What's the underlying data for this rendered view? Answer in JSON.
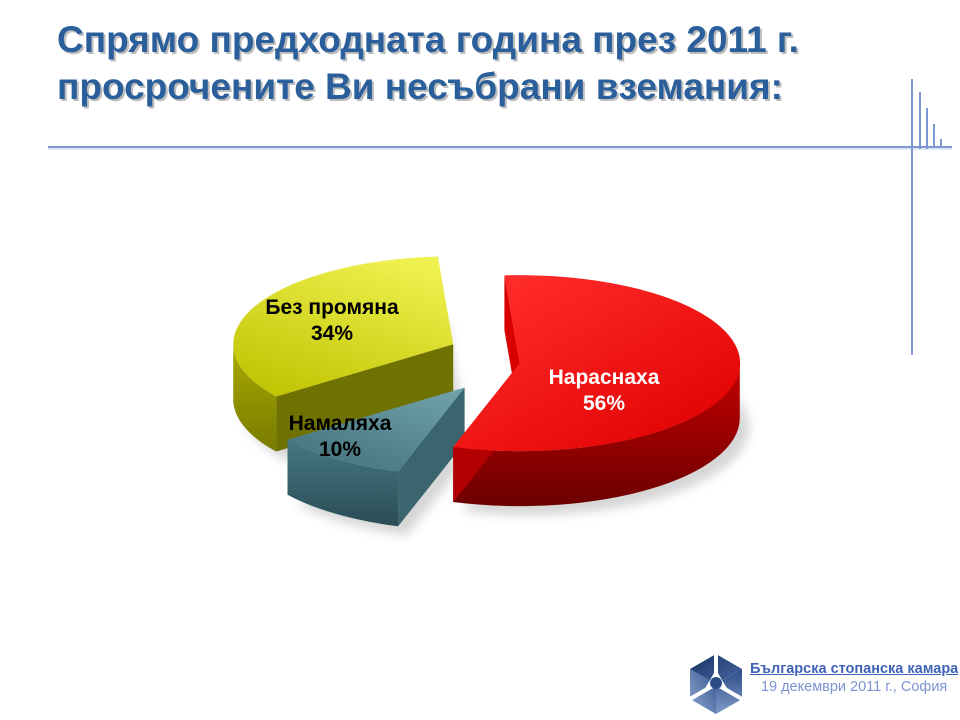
{
  "slide": {
    "title_line1": "Спрямо предходната година през 2011 г.",
    "title_line2": "просрочените Ви несъбрани вземания:",
    "footer": {
      "org_name": "Българска стопанска камара",
      "date_location": "19 декември 2011 г., София"
    }
  },
  "chart_data": {
    "type": "pie",
    "style": "3d-exploded",
    "title": "Спрямо предходната година през 2011 г. просрочените Ви несъбрани вземания:",
    "unit": "%",
    "direction": "clockwise",
    "start_angle_deg": -4,
    "legend": "none",
    "slices": [
      {
        "label": "Нараснаха",
        "value": 56,
        "pct_text": "56%",
        "color": "#ee0404",
        "label_color": "#ffffff",
        "top_light": "#ff2a2a",
        "top_dark": "#e00000",
        "side_light": "#c40000",
        "side_dark": "#6d0000",
        "wall_start": "#d90000",
        "wall_end": "#b30000"
      },
      {
        "label": "Намаляха",
        "value": 10,
        "pct_text": "10%",
        "color": "#4f828c",
        "label_color": "#000000",
        "top_light": "#6fa0a8",
        "top_dark": "#42707b",
        "side_light": "#477782",
        "side_dark": "#2a4c55",
        "wall_start": "#3a656f",
        "wall_end": ""
      },
      {
        "label": "Без промяна",
        "value": 34,
        "pct_text": "34%",
        "color": "#d6d800",
        "label_color": "#000000",
        "top_light": "#eef04e",
        "top_dark": "#c0c300",
        "side_light": "#a9ab00",
        "side_dark": "#787a00",
        "wall_start": "#6f7100",
        "wall_end": ""
      }
    ]
  },
  "decor": {
    "accent_color": "#7d97d0",
    "title_color": "#2b5f9c",
    "link_color": "#4063b8",
    "date_color": "#7b93d1",
    "logo_blue_dark": "#1e3c70",
    "logo_blue_light": "#8fa8d0"
  }
}
